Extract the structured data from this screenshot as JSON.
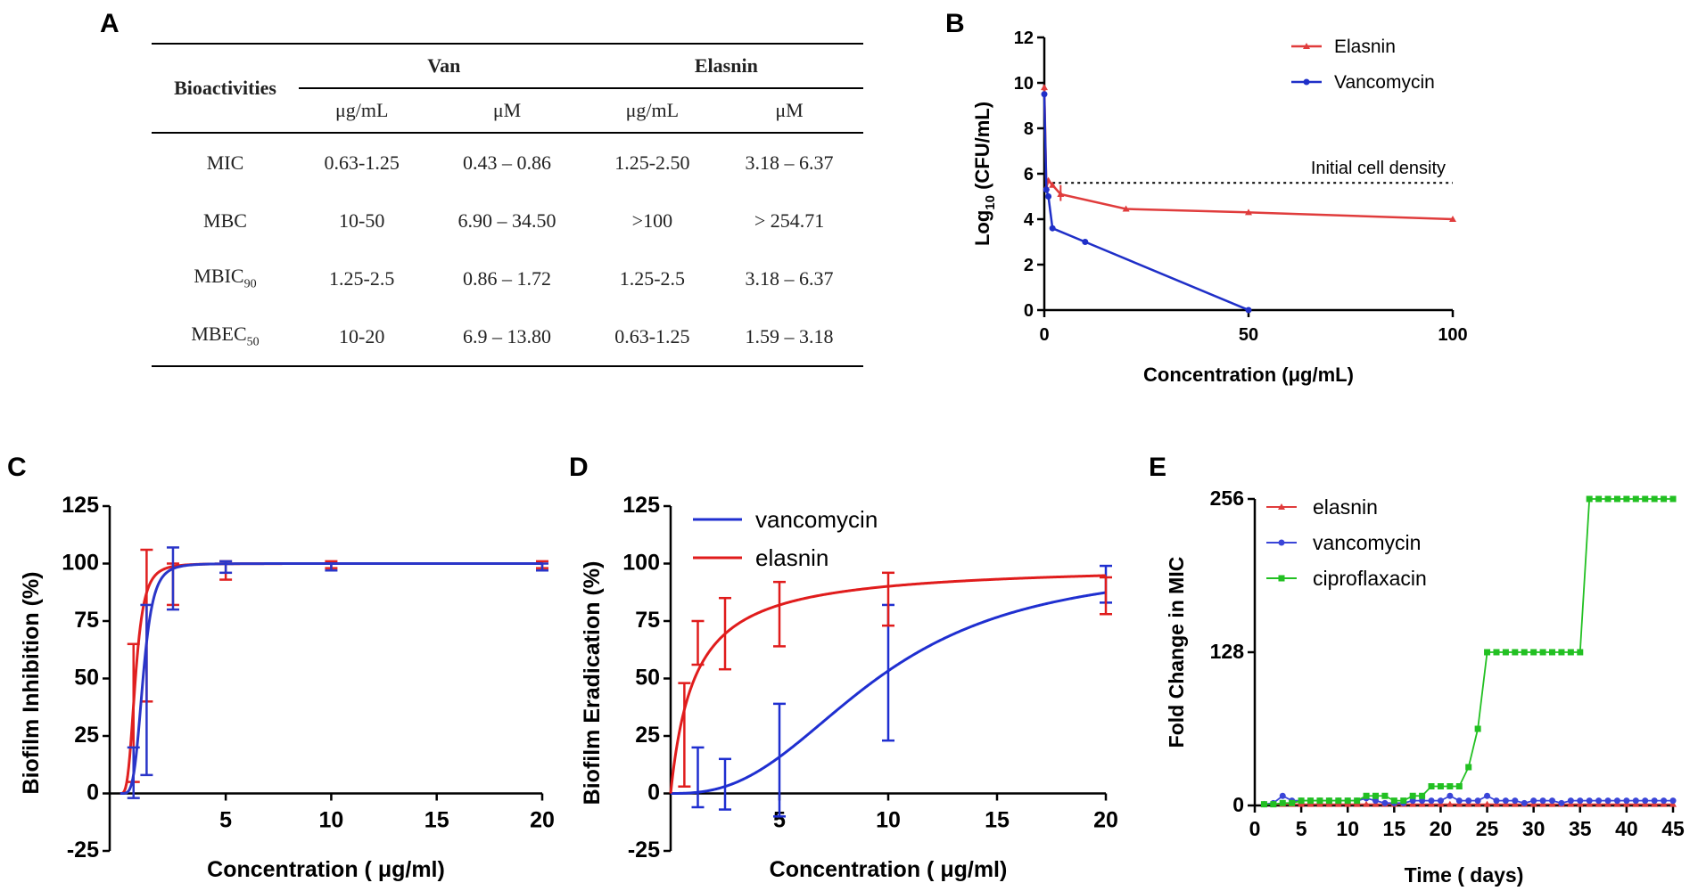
{
  "panel_letters": {
    "a": "A",
    "b": "B",
    "c": "C",
    "d": "D",
    "e": "E"
  },
  "table": {
    "row_header": "Bioactivities",
    "groups": [
      "Van",
      "Elasnin"
    ],
    "units": [
      "μg/mL",
      "μM",
      "μg/mL",
      "μM"
    ],
    "rows": [
      {
        "label": "MIC",
        "sub": "",
        "cells": [
          "0.63-1.25",
          "0.43 – 0.86",
          "1.25-2.50",
          "3.18 – 6.37"
        ]
      },
      {
        "label": "MBC",
        "sub": "",
        "cells": [
          "10-50",
          "6.90 – 34.50",
          ">100",
          "> 254.71"
        ]
      },
      {
        "label": "MBIC",
        "sub": "90",
        "cells": [
          "1.25-2.5",
          "0.86 – 1.72",
          "1.25-2.5",
          "3.18 – 6.37"
        ]
      },
      {
        "label": "MBEC",
        "sub": "50",
        "cells": [
          "10-20",
          "6.9 – 13.80",
          "0.63-1.25",
          "1.59 – 3.18"
        ]
      }
    ]
  },
  "chart_data": [
    {
      "id": "B",
      "type": "line",
      "xlabel": "Concentration (μg/mL)",
      "ylabel": "Log10 (CFU/mL)",
      "xlim": [
        0,
        100
      ],
      "ylim": [
        0,
        12
      ],
      "xticks": [
        0,
        50,
        100
      ],
      "yticks": [
        0,
        2,
        4,
        6,
        8,
        10,
        12
      ],
      "legend": "top-right",
      "annotation": {
        "text": "Initial cell density",
        "y": 5.6
      },
      "series": [
        {
          "name": "Elasnin",
          "color": "#e03c3c",
          "marker": "triangle",
          "x": [
            0,
            0.5,
            1,
            2,
            4,
            20,
            50,
            100
          ],
          "y": [
            9.8,
            5.4,
            5.7,
            5.5,
            5.1,
            4.45,
            4.3,
            4.0
          ]
        },
        {
          "name": "Vancomycin",
          "color": "#1f2fc8",
          "marker": "circle",
          "x": [
            0,
            0.5,
            1,
            2,
            10,
            50
          ],
          "y": [
            9.5,
            5.3,
            5.0,
            3.6,
            3.0,
            0
          ]
        }
      ]
    },
    {
      "id": "C",
      "type": "line",
      "xlabel": "Concentration ( μg/ml)",
      "ylabel": "Biofilm Inhibition (%)",
      "xlim": [
        -0.5,
        20
      ],
      "ylim": [
        -25,
        125
      ],
      "xticks": [
        5,
        10,
        15,
        20
      ],
      "yticks": [
        -25,
        0,
        25,
        50,
        75,
        100,
        125
      ],
      "series": [
        {
          "name": "elasnin",
          "color": "#e02020",
          "model": {
            "ec50": 0.72,
            "hill": 3.5,
            "top": 100
          },
          "points": [
            {
              "x": 0.63,
              "lo": 5,
              "hi": 65
            },
            {
              "x": 1.25,
              "lo": 40,
              "hi": 106
            },
            {
              "x": 2.5,
              "lo": 82,
              "hi": 100
            },
            {
              "x": 5,
              "lo": 93,
              "hi": 101
            },
            {
              "x": 10,
              "lo": 98,
              "hi": 101
            },
            {
              "x": 20,
              "lo": 98,
              "hi": 101
            }
          ]
        },
        {
          "name": "vancomycin",
          "color": "#2a35c8",
          "model": {
            "ec50": 1.08,
            "hill": 4.5,
            "top": 100
          },
          "points": [
            {
              "x": 0.63,
              "lo": -2,
              "hi": 20
            },
            {
              "x": 1.25,
              "lo": 8,
              "hi": 82
            },
            {
              "x": 2.5,
              "lo": 80,
              "hi": 107
            },
            {
              "x": 5,
              "lo": 96,
              "hi": 101
            },
            {
              "x": 10,
              "lo": 97,
              "hi": 100
            },
            {
              "x": 20,
              "lo": 97,
              "hi": 100
            }
          ]
        }
      ]
    },
    {
      "id": "D",
      "type": "line",
      "xlabel": "Concentration ( μg/ml)",
      "ylabel": "Biofilm Eradication (%)",
      "xlim": [
        0,
        20
      ],
      "ylim": [
        -25,
        125
      ],
      "xticks": [
        5,
        10,
        15,
        20
      ],
      "yticks": [
        -25,
        0,
        25,
        50,
        75,
        100,
        125
      ],
      "legend": "top-left",
      "series": [
        {
          "name": "vancomycin",
          "color": "#1f2fd0",
          "model": {
            "ec50": 9.5,
            "hill": 2.6,
            "top": 100
          },
          "points": [
            {
              "x": 1.25,
              "lo": -6,
              "hi": 20
            },
            {
              "x": 2.5,
              "lo": -7,
              "hi": 15
            },
            {
              "x": 5,
              "lo": -10,
              "hi": 39
            },
            {
              "x": 10,
              "lo": 23,
              "hi": 82
            },
            {
              "x": 20,
              "lo": 83,
              "hi": 99
            }
          ]
        },
        {
          "name": "elasnin",
          "color": "#e01c1c",
          "model": {
            "ec50": 1.1,
            "hill": 1.0,
            "top": 100
          },
          "points": [
            {
              "x": 0.63,
              "lo": 3,
              "hi": 48
            },
            {
              "x": 1.25,
              "lo": 56,
              "hi": 75
            },
            {
              "x": 2.5,
              "lo": 54,
              "hi": 85
            },
            {
              "x": 5,
              "lo": 64,
              "hi": 92
            },
            {
              "x": 10,
              "lo": 73,
              "hi": 96
            },
            {
              "x": 20,
              "lo": 78,
              "hi": 94
            }
          ]
        }
      ]
    },
    {
      "id": "E",
      "type": "line",
      "xlabel": "Time ( days)",
      "ylabel": "Fold Change in MIC",
      "xlim": [
        0,
        45
      ],
      "ylim": [
        0,
        256
      ],
      "xticks": [
        0,
        5,
        10,
        15,
        20,
        25,
        30,
        35,
        40,
        45
      ],
      "yticks": [
        0,
        128,
        256
      ],
      "legend": "top-left",
      "series": [
        {
          "name": "elasnin",
          "color": "#e03c3c",
          "marker": "triangle",
          "x": [
            1,
            2,
            3,
            4,
            5,
            6,
            7,
            8,
            9,
            10,
            11,
            12,
            13,
            14,
            15,
            16,
            17,
            18,
            19,
            20,
            21,
            22,
            23,
            24,
            25,
            26,
            27,
            28,
            29,
            30,
            31,
            32,
            33,
            34,
            35,
            36,
            37,
            38,
            39,
            40,
            41,
            42,
            43,
            44,
            45
          ],
          "y": [
            1,
            1,
            1,
            1,
            1,
            1,
            1,
            1,
            1,
            1,
            1,
            1,
            1,
            1,
            1,
            1,
            1,
            1,
            1,
            1,
            1,
            1,
            1,
            1,
            1,
            1,
            1,
            1,
            1,
            1,
            1,
            1,
            1,
            1,
            1,
            1,
            1,
            1,
            1,
            1,
            1,
            1,
            1,
            1,
            1
          ]
        },
        {
          "name": "vancomycin",
          "color": "#3a45d8",
          "marker": "circle",
          "x": [
            1,
            2,
            3,
            4,
            5,
            6,
            7,
            8,
            9,
            10,
            11,
            12,
            13,
            14,
            15,
            16,
            17,
            18,
            19,
            20,
            21,
            22,
            23,
            24,
            25,
            26,
            27,
            28,
            29,
            30,
            31,
            32,
            33,
            34,
            35,
            36,
            37,
            38,
            39,
            40,
            41,
            42,
            43,
            44,
            45
          ],
          "y": [
            1,
            2,
            8,
            4,
            4,
            4,
            4,
            4,
            4,
            4,
            4,
            6,
            4,
            2,
            2,
            2,
            4,
            4,
            4,
            4,
            8,
            4,
            4,
            4,
            8,
            4,
            4,
            4,
            2,
            4,
            4,
            4,
            2,
            4,
            4,
            4,
            4,
            4,
            4,
            4,
            4,
            4,
            4,
            4,
            4
          ]
        },
        {
          "name": "ciproflaxacin",
          "color": "#22c022",
          "marker": "square",
          "x": [
            1,
            2,
            3,
            4,
            5,
            6,
            7,
            8,
            9,
            10,
            11,
            12,
            13,
            14,
            15,
            16,
            17,
            18,
            19,
            20,
            21,
            22,
            23,
            24,
            25,
            26,
            27,
            28,
            29,
            30,
            31,
            32,
            33,
            34,
            35,
            36,
            37,
            38,
            39,
            40,
            41,
            42,
            43,
            44,
            45
          ],
          "y": [
            1,
            1,
            2,
            2,
            4,
            4,
            4,
            4,
            4,
            4,
            4,
            8,
            8,
            8,
            4,
            4,
            8,
            8,
            16,
            16,
            16,
            16,
            32,
            64,
            128,
            128,
            128,
            128,
            128,
            128,
            128,
            128,
            128,
            128,
            128,
            256,
            256,
            256,
            256,
            256,
            256,
            256,
            256,
            256,
            256
          ]
        }
      ]
    }
  ]
}
